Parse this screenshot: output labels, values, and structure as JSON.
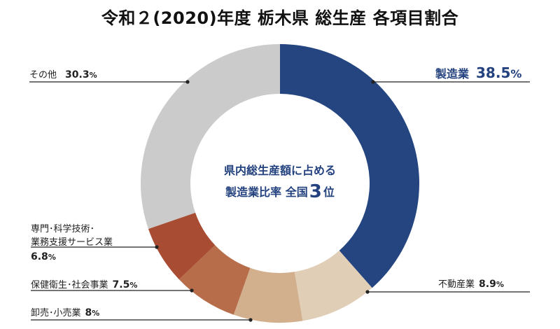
{
  "title": "令和２(2020)年度 栃木県 総生産 各項目割合",
  "center": {
    "line1": "県内総生産額に占める",
    "line2_prefix": "製造業比率 全国",
    "rank": "3",
    "line2_suffix": "位"
  },
  "labels": {
    "manufacturing": {
      "name": "製造業",
      "value": "38.5",
      "unit": "%"
    },
    "realestate": {
      "name": "不動産業",
      "value": "8.9",
      "unit": "%"
    },
    "wholesale": {
      "name": "卸売･小売業",
      "value": "8",
      "unit": "%"
    },
    "health": {
      "name": "保健衛生･社会事業",
      "value": "7.5",
      "unit": "%"
    },
    "professional": {
      "name_line1": "専門･科学技術･",
      "name_line2": "業務支援サービス業",
      "value": "6.8",
      "unit": "%"
    },
    "other": {
      "name": "その他",
      "value": "30.3",
      "unit": "%"
    }
  },
  "colors": {
    "manufacturing": "#24457f",
    "realestate": "#e0ceb6",
    "wholesale": "#d2b08e",
    "health": "#b76d4a",
    "professional": "#a84c33",
    "other": "#cbcbcb",
    "center_text": "#24427f"
  },
  "chart_data": {
    "type": "pie",
    "subtype": "donut",
    "title": "令和２(2020)年度 栃木県 総生産 各項目割合",
    "categories": [
      "製造業",
      "不動産業",
      "卸売・小売業",
      "保健衛生・社会事業",
      "専門・科学技術・業務支援サービス業",
      "その他"
    ],
    "values": [
      38.5,
      8.9,
      8,
      7.5,
      6.8,
      30.3
    ],
    "unit": "%",
    "start_angle": "12 o'clock, clockwise",
    "annotation": "県内総生産額に占める製造業比率 全国3位",
    "legend": "leader-line labels"
  }
}
